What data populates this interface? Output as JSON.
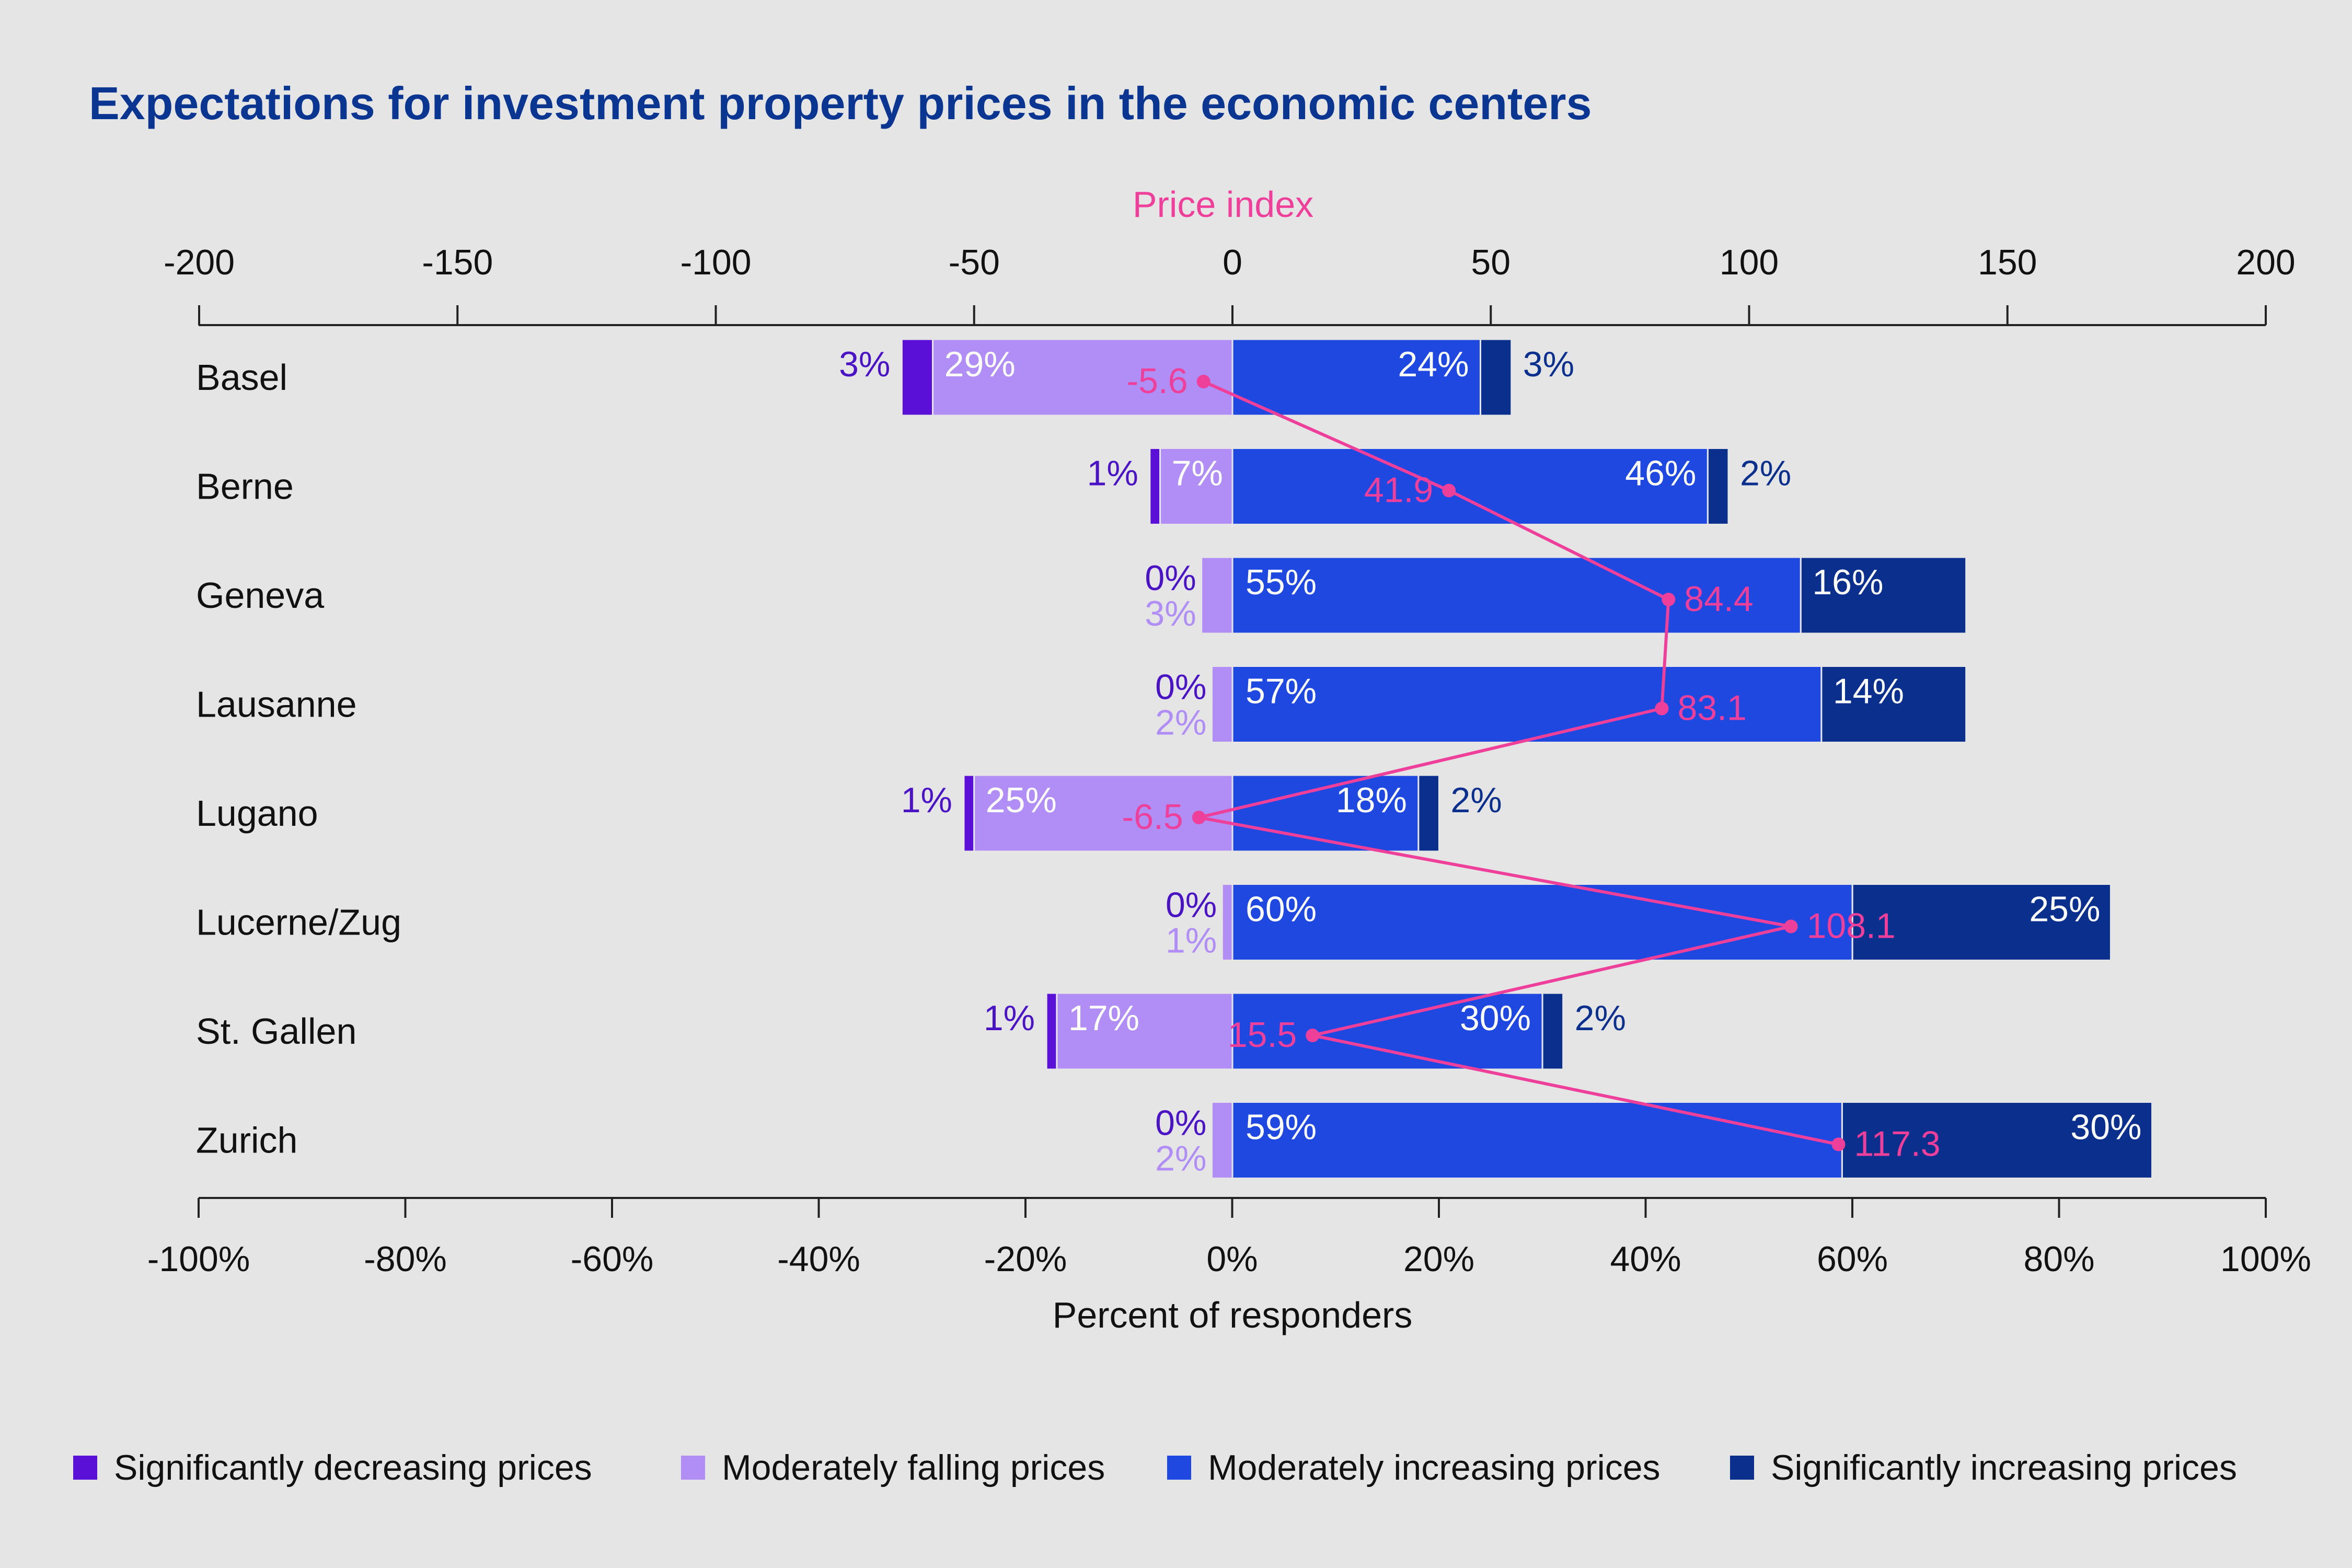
{
  "chart_data": {
    "type": "bar",
    "title": "Expectations for investment property prices in the economic centers",
    "top_axis_label": "Price index",
    "top_axis_ticks": [
      -200,
      -150,
      -100,
      -50,
      0,
      50,
      100,
      150,
      200
    ],
    "top_axis_range": [
      -200,
      200
    ],
    "xlabel": "Percent of responders",
    "bottom_axis_ticks": [
      "-100%",
      "-80%",
      "-60%",
      "-40%",
      "-20%",
      "0%",
      "20%",
      "40%",
      "60%",
      "80%",
      "100%"
    ],
    "bottom_axis_range": [
      -100,
      100
    ],
    "categories": [
      "Basel",
      "Berne",
      "Geneva",
      "Lausanne",
      "Lugano",
      "Lucerne/Zug",
      "St. Gallen",
      "Zurich"
    ],
    "series": [
      {
        "name": "Significantly decreasing prices",
        "color": "#5a10d6",
        "values": [
          3,
          1,
          0,
          0,
          1,
          0,
          1,
          0
        ],
        "labels": [
          "3%",
          "1%",
          "0%",
          "0%",
          "1%",
          "0%",
          "1%",
          "0%"
        ]
      },
      {
        "name": "Moderately falling prices",
        "color": "#b08ef5",
        "values": [
          29,
          7,
          3,
          2,
          25,
          1,
          17,
          2
        ],
        "labels": [
          "29%",
          "7%",
          "3%",
          "2%",
          "25%",
          "1%",
          "17%",
          "2%"
        ]
      },
      {
        "name": "Moderately increasing prices",
        "color": "#1f48e0",
        "values": [
          24,
          46,
          55,
          57,
          18,
          60,
          30,
          59
        ],
        "labels": [
          "24%",
          "46%",
          "55%",
          "57%",
          "18%",
          "60%",
          "30%",
          "59%"
        ]
      },
      {
        "name": "Significantly increasing prices",
        "color": "#0a2f8c",
        "values": [
          3,
          2,
          16,
          14,
          2,
          25,
          2,
          30
        ],
        "labels": [
          "3%",
          "2%",
          "16%",
          "14%",
          "2%",
          "25%",
          "2%",
          "30%"
        ]
      }
    ],
    "price_index": {
      "name": "Price index",
      "color": "#ee3f9b",
      "values": [
        -5.6,
        41.9,
        84.4,
        83.1,
        -6.5,
        108.1,
        15.5,
        117.3
      ],
      "labels": [
        "-5.6",
        "41.9",
        "84.4",
        "83.1",
        "-6.5",
        "108.1",
        "15.5",
        "117.3"
      ]
    },
    "legend_position": "bottom",
    "grid": false
  },
  "colors": {
    "title": "#0a3590",
    "axis": "#222222",
    "background": "#e5e5e5"
  }
}
